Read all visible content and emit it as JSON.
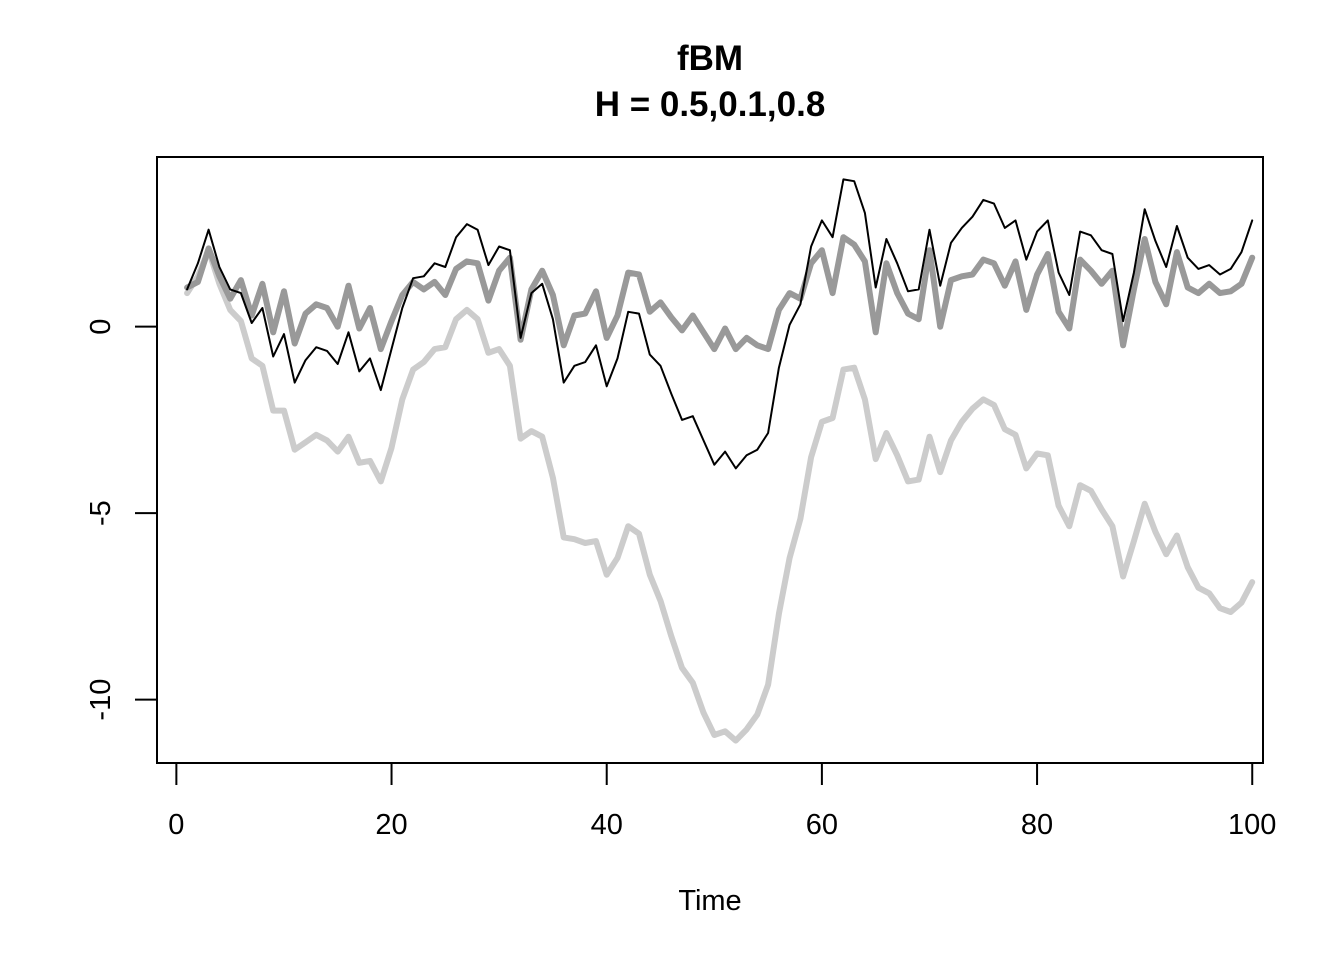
{
  "chart_data": {
    "type": "line",
    "title": "fBM",
    "subtitle": "H = 0.5,0.1,0.8",
    "xlabel": "Time",
    "ylabel": "",
    "xlim": [
      -1.8,
      101.0
    ],
    "ylim": [
      -11.7,
      4.55
    ],
    "x_ticks": [
      0,
      20,
      40,
      60,
      80,
      100
    ],
    "x_tick_labels": [
      "0",
      "20",
      "40",
      "60",
      "80",
      "100"
    ],
    "y_ticks": [
      0,
      -5,
      -10
    ],
    "y_tick_labels": [
      "0",
      "-5",
      "-10"
    ],
    "grid": false,
    "legend": "none",
    "x": [
      1,
      2,
      3,
      4,
      5,
      6,
      7,
      8,
      9,
      10,
      11,
      12,
      13,
      14,
      15,
      16,
      17,
      18,
      19,
      20,
      21,
      22,
      23,
      24,
      25,
      26,
      27,
      28,
      29,
      30,
      31,
      32,
      33,
      34,
      35,
      36,
      37,
      38,
      39,
      40,
      41,
      42,
      43,
      44,
      45,
      46,
      47,
      48,
      49,
      50,
      51,
      52,
      53,
      54,
      55,
      56,
      57,
      58,
      59,
      60,
      61,
      62,
      63,
      64,
      65,
      66,
      67,
      68,
      69,
      70,
      71,
      72,
      73,
      74,
      75,
      76,
      77,
      78,
      79,
      80,
      81,
      82,
      83,
      84,
      85,
      86,
      87,
      88,
      89,
      90,
      91,
      92,
      93,
      94,
      95,
      96,
      97,
      98,
      99,
      100
    ],
    "series": [
      {
        "color": "#000000",
        "line_width": 2,
        "values": [
          1.0,
          1.7,
          2.6,
          1.6,
          1.0,
          0.9,
          0.1,
          0.5,
          -0.8,
          -0.2,
          -1.5,
          -0.9,
          -0.55,
          -0.65,
          -1.0,
          -0.15,
          -1.2,
          -0.85,
          -1.7,
          -0.6,
          0.5,
          1.3,
          1.35,
          1.7,
          1.6,
          2.4,
          2.75,
          2.6,
          1.65,
          2.15,
          2.05,
          -0.3,
          0.9,
          1.15,
          0.2,
          -1.5,
          -1.05,
          -0.95,
          -0.5,
          -1.6,
          -0.85,
          0.4,
          0.35,
          -0.75,
          -1.05,
          -1.8,
          -2.5,
          -2.4,
          -3.05,
          -3.7,
          -3.35,
          -3.8,
          -3.45,
          -3.3,
          -2.85,
          -1.1,
          0.05,
          0.6,
          2.15,
          2.85,
          2.4,
          3.95,
          3.9,
          3.05,
          1.05,
          2.35,
          1.7,
          0.95,
          1.0,
          2.6,
          1.1,
          2.25,
          2.65,
          2.95,
          3.4,
          3.3,
          2.65,
          2.85,
          1.8,
          2.55,
          2.85,
          1.45,
          0.85,
          2.55,
          2.45,
          2.05,
          1.95,
          0.15,
          1.45,
          3.15,
          2.3,
          1.6,
          2.7,
          1.85,
          1.55,
          1.65,
          1.4,
          1.55,
          2.0,
          2.85
        ]
      },
      {
        "color": "#999999",
        "line_width": 6,
        "values": [
          1.05,
          1.2,
          2.1,
          1.35,
          0.75,
          1.25,
          0.3,
          1.15,
          -0.15,
          0.95,
          -0.45,
          0.35,
          0.6,
          0.5,
          0.0,
          1.1,
          -0.05,
          0.5,
          -0.6,
          0.15,
          0.85,
          1.2,
          1.0,
          1.2,
          0.85,
          1.55,
          1.75,
          1.7,
          0.7,
          1.5,
          1.85,
          -0.35,
          1.0,
          1.5,
          0.85,
          -0.5,
          0.3,
          0.35,
          0.95,
          -0.3,
          0.3,
          1.45,
          1.4,
          0.4,
          0.65,
          0.25,
          -0.1,
          0.3,
          -0.15,
          -0.6,
          -0.05,
          -0.6,
          -0.3,
          -0.5,
          -0.6,
          0.45,
          0.9,
          0.75,
          1.7,
          2.05,
          0.9,
          2.4,
          2.2,
          1.75,
          -0.15,
          1.7,
          0.9,
          0.35,
          0.2,
          2.05,
          0.0,
          1.25,
          1.35,
          1.4,
          1.8,
          1.7,
          1.1,
          1.75,
          0.45,
          1.4,
          1.95,
          0.4,
          -0.05,
          1.8,
          1.5,
          1.15,
          1.5,
          -0.5,
          1.0,
          2.35,
          1.2,
          0.6,
          2.0,
          1.05,
          0.9,
          1.15,
          0.9,
          0.95,
          1.15,
          1.85
        ]
      },
      {
        "color": "#cccccc",
        "line_width": 6,
        "values": [
          0.9,
          1.35,
          2.05,
          1.15,
          0.45,
          0.15,
          -0.85,
          -1.05,
          -2.25,
          -2.25,
          -3.3,
          -3.1,
          -2.9,
          -3.05,
          -3.35,
          -2.95,
          -3.65,
          -3.6,
          -4.15,
          -3.25,
          -1.95,
          -1.15,
          -0.95,
          -0.6,
          -0.55,
          0.2,
          0.45,
          0.2,
          -0.7,
          -0.6,
          -1.05,
          -3.0,
          -2.8,
          -2.95,
          -4.05,
          -5.65,
          -5.7,
          -5.8,
          -5.75,
          -6.65,
          -6.2,
          -5.35,
          -5.55,
          -6.65,
          -7.35,
          -8.3,
          -9.15,
          -9.55,
          -10.35,
          -10.95,
          -10.85,
          -11.1,
          -10.8,
          -10.4,
          -9.6,
          -7.7,
          -6.2,
          -5.15,
          -3.5,
          -2.55,
          -2.45,
          -1.15,
          -1.1,
          -1.95,
          -3.55,
          -2.85,
          -3.45,
          -4.15,
          -4.1,
          -2.95,
          -3.9,
          -3.05,
          -2.55,
          -2.2,
          -1.95,
          -2.1,
          -2.75,
          -2.9,
          -3.8,
          -3.4,
          -3.45,
          -4.8,
          -5.35,
          -4.25,
          -4.4,
          -4.9,
          -5.35,
          -6.7,
          -5.75,
          -4.75,
          -5.5,
          -6.1,
          -5.6,
          -6.45,
          -7.0,
          -7.15,
          -7.55,
          -7.65,
          -7.4,
          -6.85
        ]
      }
    ]
  }
}
